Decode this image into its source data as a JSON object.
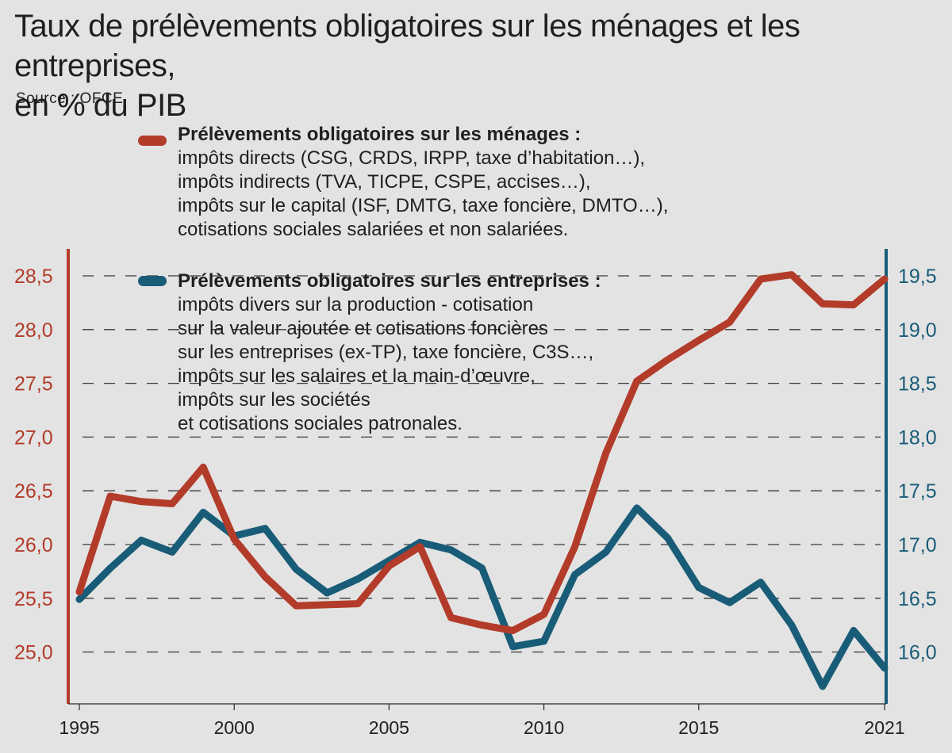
{
  "title_line1": "Taux de prélèvements obligatoires sur les ménages et les entreprises,",
  "title_line2": "en % du PIB",
  "source": "Source : OFCE",
  "colors": {
    "menages": "#b33b29",
    "entreprises": "#185c78",
    "background": "#e3e3e3"
  },
  "legend": {
    "menages": {
      "title": "Prélèvements obligatoires sur les ménages :",
      "lines": [
        "impôts directs (CSG, CRDS, IRPP, taxe d’habitation…),",
        "impôts indirects (TVA, TICPE, CSPE, accises…),",
        "impôts sur le capital (ISF, DMTG, taxe foncière, DMTO…),",
        "cotisations sociales salariées et non salariées."
      ]
    },
    "entreprises": {
      "title": "Prélèvements obligatoires sur les entreprises :",
      "lines": [
        "impôts divers sur la production - cotisation",
        "sur la valeur ajoutée et cotisations foncières",
        "sur les entreprises (ex-TP), taxe foncière, C3S…,",
        "impôts sur les salaires et la main-d’œuvre,",
        "impôts sur les sociétés",
        "et cotisations sociales patronales."
      ]
    }
  },
  "chart_data": {
    "type": "line",
    "x": [
      1995,
      1996,
      1997,
      1998,
      1999,
      2000,
      2001,
      2002,
      2003,
      2004,
      2005,
      2006,
      2007,
      2008,
      2009,
      2010,
      2011,
      2012,
      2013,
      2014,
      2015,
      2016,
      2017,
      2018,
      2019,
      2020,
      2021
    ],
    "x_tick_labels": [
      "1995",
      "2000",
      "2005",
      "2010",
      "2015",
      "2021"
    ],
    "x_tick_values": [
      1995,
      2000,
      2005,
      2010,
      2015,
      2021
    ],
    "y_left": {
      "range": [
        24.75,
        28.75
      ],
      "ticks": [
        "28,5",
        "28,0",
        "27,5",
        "27,0",
        "26,5",
        "26,0",
        "25,5",
        "25,0"
      ],
      "tick_values": [
        28.5,
        28.0,
        27.5,
        27.0,
        26.5,
        26.0,
        25.5,
        25.0
      ]
    },
    "y_right": {
      "range": [
        15.75,
        19.75
      ],
      "ticks": [
        "19,5",
        "19,0",
        "18,5",
        "18,0",
        "17,5",
        "17,0",
        "16,5",
        "16,0"
      ],
      "tick_values": [
        19.5,
        19.0,
        18.5,
        18.0,
        17.5,
        17.0,
        16.5,
        16.0
      ]
    },
    "grid": "dashed horizontal",
    "series": [
      {
        "key": "menages",
        "axis": "left",
        "values": [
          25.56,
          26.45,
          26.4,
          26.38,
          26.72,
          26.05,
          25.7,
          25.43,
          25.44,
          25.45,
          25.8,
          25.98,
          25.32,
          25.25,
          25.2,
          25.35,
          25.98,
          26.85,
          27.52,
          27.72,
          27.9,
          28.07,
          28.47,
          28.51,
          28.24,
          28.23,
          28.47
        ]
      },
      {
        "key": "entreprises",
        "axis": "right",
        "values": [
          16.49,
          16.78,
          17.04,
          16.93,
          17.3,
          17.08,
          17.15,
          16.77,
          16.55,
          16.68,
          16.85,
          17.02,
          16.95,
          16.78,
          16.05,
          16.1,
          16.72,
          16.93,
          17.34,
          17.06,
          16.6,
          16.46,
          16.65,
          16.25,
          15.68,
          16.2,
          15.85
        ]
      }
    ]
  }
}
